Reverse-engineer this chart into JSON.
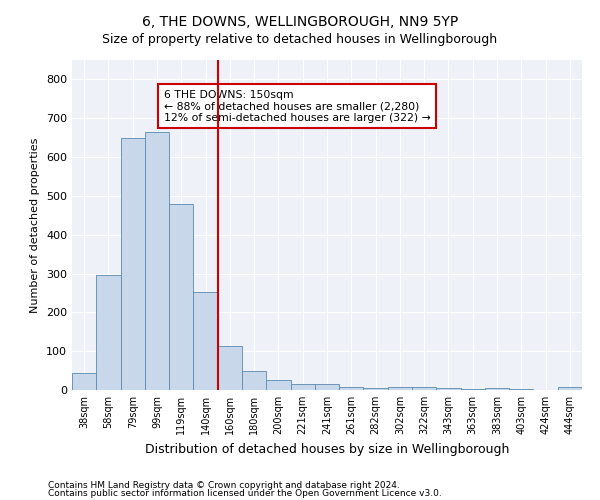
{
  "title1": "6, THE DOWNS, WELLINGBOROUGH, NN9 5YP",
  "title2": "Size of property relative to detached houses in Wellingborough",
  "xlabel": "Distribution of detached houses by size in Wellingborough",
  "ylabel": "Number of detached properties",
  "categories": [
    "38sqm",
    "58sqm",
    "79sqm",
    "99sqm",
    "119sqm",
    "140sqm",
    "160sqm",
    "180sqm",
    "200sqm",
    "221sqm",
    "241sqm",
    "261sqm",
    "282sqm",
    "302sqm",
    "322sqm",
    "343sqm",
    "363sqm",
    "383sqm",
    "403sqm",
    "424sqm",
    "444sqm"
  ],
  "values": [
    45,
    295,
    650,
    665,
    480,
    253,
    113,
    50,
    27,
    15,
    15,
    8,
    5,
    8,
    8,
    5,
    3,
    5,
    3,
    0,
    8
  ],
  "bar_color": "#c8d8ea",
  "bar_edge_color": "#5a8ab0",
  "vline_x_index": 5.5,
  "vline_color": "#cc0000",
  "annotation_title": "6 THE DOWNS: 150sqm",
  "annotation_line1": "← 88% of detached houses are smaller (2,280)",
  "annotation_line2": "12% of semi-detached houses are larger (322) →",
  "annotation_box_color": "#cc0000",
  "ylim": [
    0,
    850
  ],
  "yticks": [
    0,
    100,
    200,
    300,
    400,
    500,
    600,
    700,
    800
  ],
  "footer1": "Contains HM Land Registry data © Crown copyright and database right 2024.",
  "footer2": "Contains public sector information licensed under the Open Government Licence v3.0.",
  "bg_color": "#ffffff",
  "plot_bg_color": "#eef2f8",
  "grid_color": "#ffffff",
  "title1_fontsize": 10,
  "title2_fontsize": 9,
  "ylabel_fontsize": 8,
  "xlabel_fontsize": 9
}
